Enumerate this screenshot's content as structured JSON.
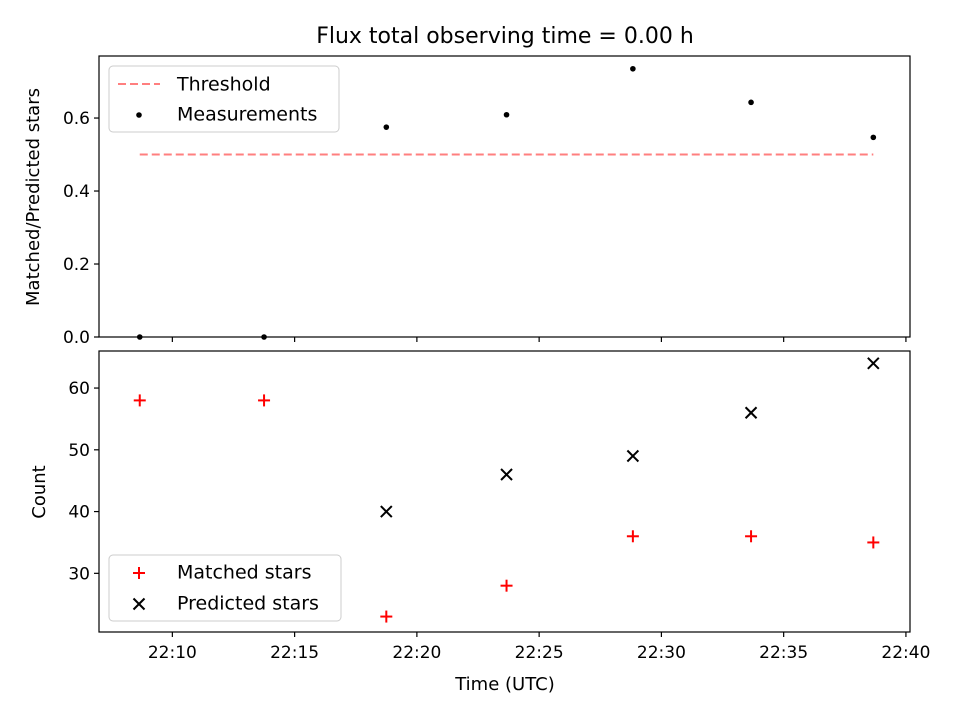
{
  "chart_data": [
    {
      "type": "scatter",
      "title": "Flux total observing time = 0.00 h",
      "xlabel": "",
      "ylabel": "Matched/Predicted stars",
      "yticks": [
        "0.0",
        "0.2",
        "0.4",
        "0.6"
      ],
      "ylim": [
        0.0,
        0.77
      ],
      "legend_position": "top-left",
      "threshold": {
        "name": "Threshold",
        "value": 0.5,
        "x_start": "22:08:40",
        "x_end": "22:38:40",
        "color": "#ff7f7f"
      },
      "series": [
        {
          "name": "Measurements",
          "color": "#000000",
          "marker": "dot",
          "points": [
            {
              "x": "22:08:40",
              "y": 0.0
            },
            {
              "x": "22:13:45",
              "y": 0.0
            },
            {
              "x": "22:18:45",
              "y": 0.575
            },
            {
              "x": "22:23:40",
              "y": 0.609
            },
            {
              "x": "22:28:50",
              "y": 0.735
            },
            {
              "x": "22:33:40",
              "y": 0.643
            },
            {
              "x": "22:38:40",
              "y": 0.547
            }
          ]
        }
      ]
    },
    {
      "type": "scatter",
      "title": "",
      "xlabel": "Time (UTC)",
      "ylabel": "Count",
      "xticks": [
        "22:10",
        "22:15",
        "22:20",
        "22:25",
        "22:30",
        "22:35",
        "22:40"
      ],
      "xlim": [
        "22:07:00",
        "22:40:10"
      ],
      "yticks": [
        "30",
        "40",
        "50",
        "60"
      ],
      "ylim": [
        20.5,
        66
      ],
      "legend_position": "bottom-left",
      "series": [
        {
          "name": "Matched stars",
          "color": "#ff0000",
          "marker": "plus",
          "points": [
            {
              "x": "22:08:40",
              "y": 58
            },
            {
              "x": "22:13:45",
              "y": 58
            },
            {
              "x": "22:18:45",
              "y": 23
            },
            {
              "x": "22:23:40",
              "y": 28
            },
            {
              "x": "22:28:50",
              "y": 36
            },
            {
              "x": "22:33:40",
              "y": 36
            },
            {
              "x": "22:38:40",
              "y": 35
            }
          ]
        },
        {
          "name": "Predicted stars",
          "color": "#000000",
          "marker": "x",
          "points": [
            {
              "x": "22:18:45",
              "y": 40
            },
            {
              "x": "22:23:40",
              "y": 46
            },
            {
              "x": "22:28:50",
              "y": 49
            },
            {
              "x": "22:33:40",
              "y": 56
            },
            {
              "x": "22:38:40",
              "y": 64
            }
          ]
        }
      ]
    }
  ]
}
